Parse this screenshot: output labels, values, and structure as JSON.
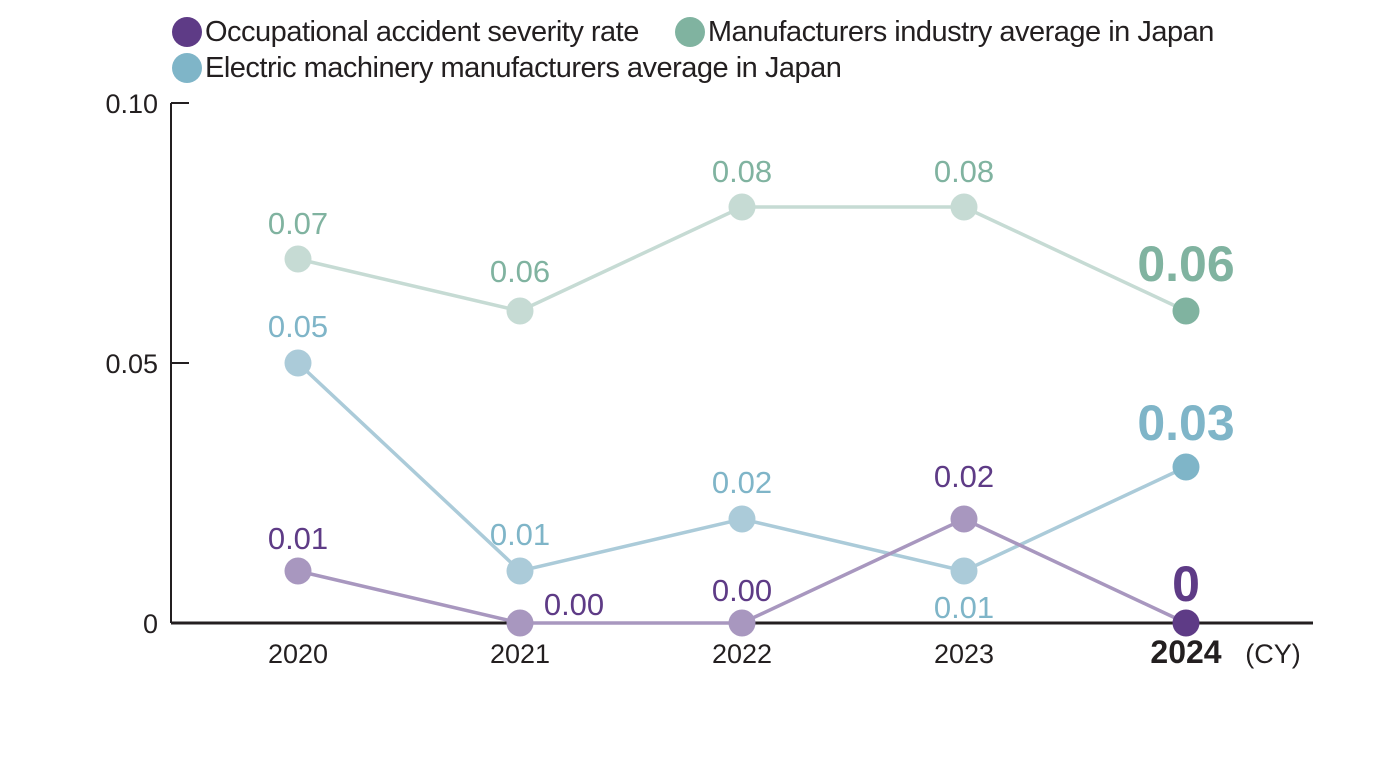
{
  "chart_data": {
    "type": "line",
    "title": "",
    "xlabel": "",
    "ylabel": "",
    "x_unit_label": "(CY)",
    "categories": [
      "2020",
      "2021",
      "2022",
      "2023",
      "2024"
    ],
    "highlight_category": "2024",
    "ylim": [
      0,
      0.1
    ],
    "yticks": [
      {
        "value": 0,
        "label": "0"
      },
      {
        "value": 0.05,
        "label": "0.05"
      },
      {
        "value": 0.1,
        "label": "0.10"
      }
    ],
    "grid": false,
    "legend_position": "top-left",
    "series": [
      {
        "name": "Occupational accident severity rate",
        "key": "severity",
        "color": "#5e3b86",
        "light_color": "#a897bf",
        "values": [
          0.01,
          0.0,
          0.0,
          0.02,
          0
        ],
        "labels": [
          "0.01",
          "0.00",
          "0.00",
          "0.02",
          "0"
        ]
      },
      {
        "name": "Manufacturers industry average in Japan",
        "key": "manufacturers",
        "color": "#80b3a0",
        "light_color": "#c6dbd4",
        "values": [
          0.07,
          0.06,
          0.08,
          0.08,
          0.06
        ],
        "labels": [
          "0.07",
          "0.06",
          "0.08",
          "0.08",
          "0.06"
        ]
      },
      {
        "name": "Electric machinery manufacturers average in Japan",
        "key": "electric",
        "color": "#7fb5c8",
        "light_color": "#abcbd9",
        "values": [
          0.05,
          0.01,
          0.02,
          0.01,
          0.03
        ],
        "labels": [
          "0.05",
          "0.01",
          "0.02",
          "0.01",
          "0.03"
        ]
      }
    ]
  },
  "legend": {
    "items": [
      {
        "label": "Occupational accident severity rate",
        "color": "#5e3b86"
      },
      {
        "label": "Manufacturers industry average in Japan",
        "color": "#80b3a0"
      },
      {
        "label": "Electric machinery manufacturers average in Japan",
        "color": "#7fb5c8"
      }
    ]
  },
  "colors": {
    "axis": "#231f20",
    "text": "#231f20",
    "severity_label": "#5e3b86",
    "manufacturers_label": "#80b3a0",
    "electric_label": "#7fb5c8"
  }
}
